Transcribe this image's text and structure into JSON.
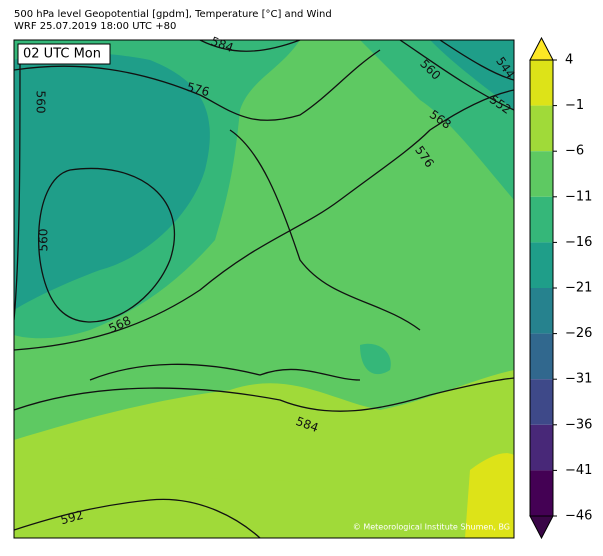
{
  "header": {
    "title": "500 hPa level Geopotential [gpdm], Temperature [°C] and Wind",
    "subtitle": "WRF 25.07.2019 18:00 UTC +80"
  },
  "map": {
    "time_label": "02 UTC Mon",
    "credit": "© Meteorological Institute Shumen, BG",
    "contour_labels": [
      "584",
      "576",
      "560",
      "560",
      "568",
      "576",
      "544",
      "552",
      "560",
      "568",
      "584",
      "592"
    ]
  },
  "colorbar": {
    "lim": [
      -46,
      4
    ],
    "ticks": [
      {
        "value": 4,
        "label": "4"
      },
      {
        "value": -1,
        "label": "−1"
      },
      {
        "value": -6,
        "label": "−6"
      },
      {
        "value": -11,
        "label": "−11"
      },
      {
        "value": -16,
        "label": "−16"
      },
      {
        "value": -21,
        "label": "−21"
      },
      {
        "value": -26,
        "label": "−26"
      },
      {
        "value": -31,
        "label": "−31"
      },
      {
        "value": -36,
        "label": "−36"
      },
      {
        "value": -41,
        "label": "−41"
      },
      {
        "value": -46,
        "label": "−46"
      }
    ],
    "colors": [
      "#dde318",
      "#a0da39",
      "#5ec962",
      "#35b779",
      "#1f9e89",
      "#26828e",
      "#31688e",
      "#3e4989",
      "#482878",
      "#440154"
    ],
    "extend_colors": [
      "#fde725",
      "#3a0647"
    ]
  }
}
